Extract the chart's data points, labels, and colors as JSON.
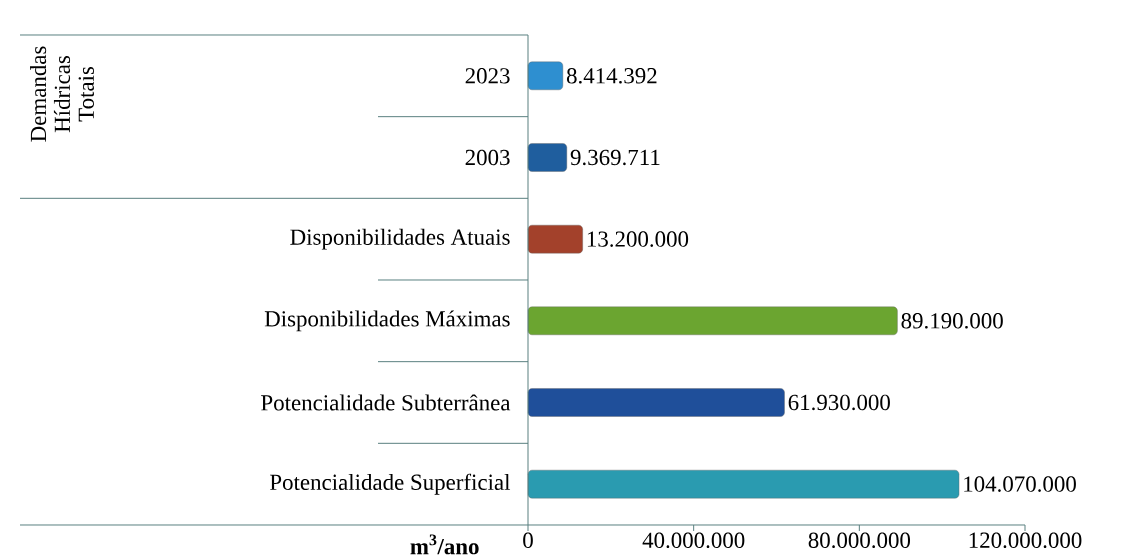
{
  "chart_data": {
    "type": "bar",
    "orientation": "horizontal",
    "categories": [
      "2023",
      "2003",
      "Disponibilidades Atuais",
      "Disponibilidades Máximas",
      "Potencialidade Subterrânea",
      "Potencialidade Superficial"
    ],
    "values": [
      8414392,
      9369711,
      13200000,
      89190000,
      61930000,
      104070000
    ],
    "value_labels": [
      "8.414.392",
      "9.369.711",
      "13.200.000",
      "89.190.000",
      "61.930.000",
      "104.070.000"
    ],
    "colors": [
      "#2e8fd0",
      "#1f5e9e",
      "#a3412b",
      "#6ba530",
      "#1f4f9a",
      "#2a9bb0"
    ],
    "xlabel": "m$^{3}$/ano",
    "xlim": [
      0,
      120000000
    ],
    "xticks": [
      0,
      {
        "value": 40000000,
        "label": "40.000.000"
      },
      {
        "value": 80000000,
        "label": "80.000.000"
      },
      {
        "value": 120000000,
        "label": "120.000.000"
      }
    ],
    "annotations": [
      "Demandas Hídricas Totais"
    ]
  }
}
